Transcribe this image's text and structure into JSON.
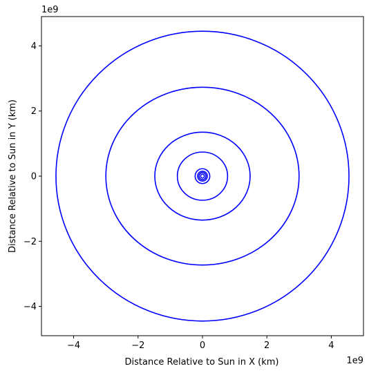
{
  "chart_data": {
    "type": "line",
    "title": "",
    "xlabel": "Distance Relative to Sun in X (km)",
    "ylabel": "Distance Relative to Sun in Y (km)",
    "x_offset_text": "1e9",
    "y_offset_text": "1e9",
    "xlim": [
      -5.0,
      5.0
    ],
    "ylim": [
      -4.9,
      4.9
    ],
    "x_ticks": [
      -4,
      -2,
      0,
      2,
      4
    ],
    "y_ticks": [
      -4,
      -2,
      0,
      2,
      4
    ],
    "x_tick_labels": [
      "−4",
      "−2",
      "0",
      "2",
      "4"
    ],
    "y_tick_labels": [
      "−4",
      "−2",
      "0",
      "2",
      "4"
    ],
    "units_scale": 1000000000,
    "grid": false,
    "legend": "none",
    "line_color": "#0000ff",
    "series": [
      {
        "rx": 0.058,
        "ry": 0.058
      },
      {
        "rx": 0.108,
        "ry": 0.108
      },
      {
        "rx": 0.15,
        "ry": 0.15
      },
      {
        "rx": 0.228,
        "ry": 0.228
      },
      {
        "rx": 0.78,
        "ry": 0.74
      },
      {
        "rx": 1.48,
        "ry": 1.35
      },
      {
        "rx": 3.0,
        "ry": 2.73
      },
      {
        "rx": 4.55,
        "ry": 4.45
      }
    ]
  }
}
